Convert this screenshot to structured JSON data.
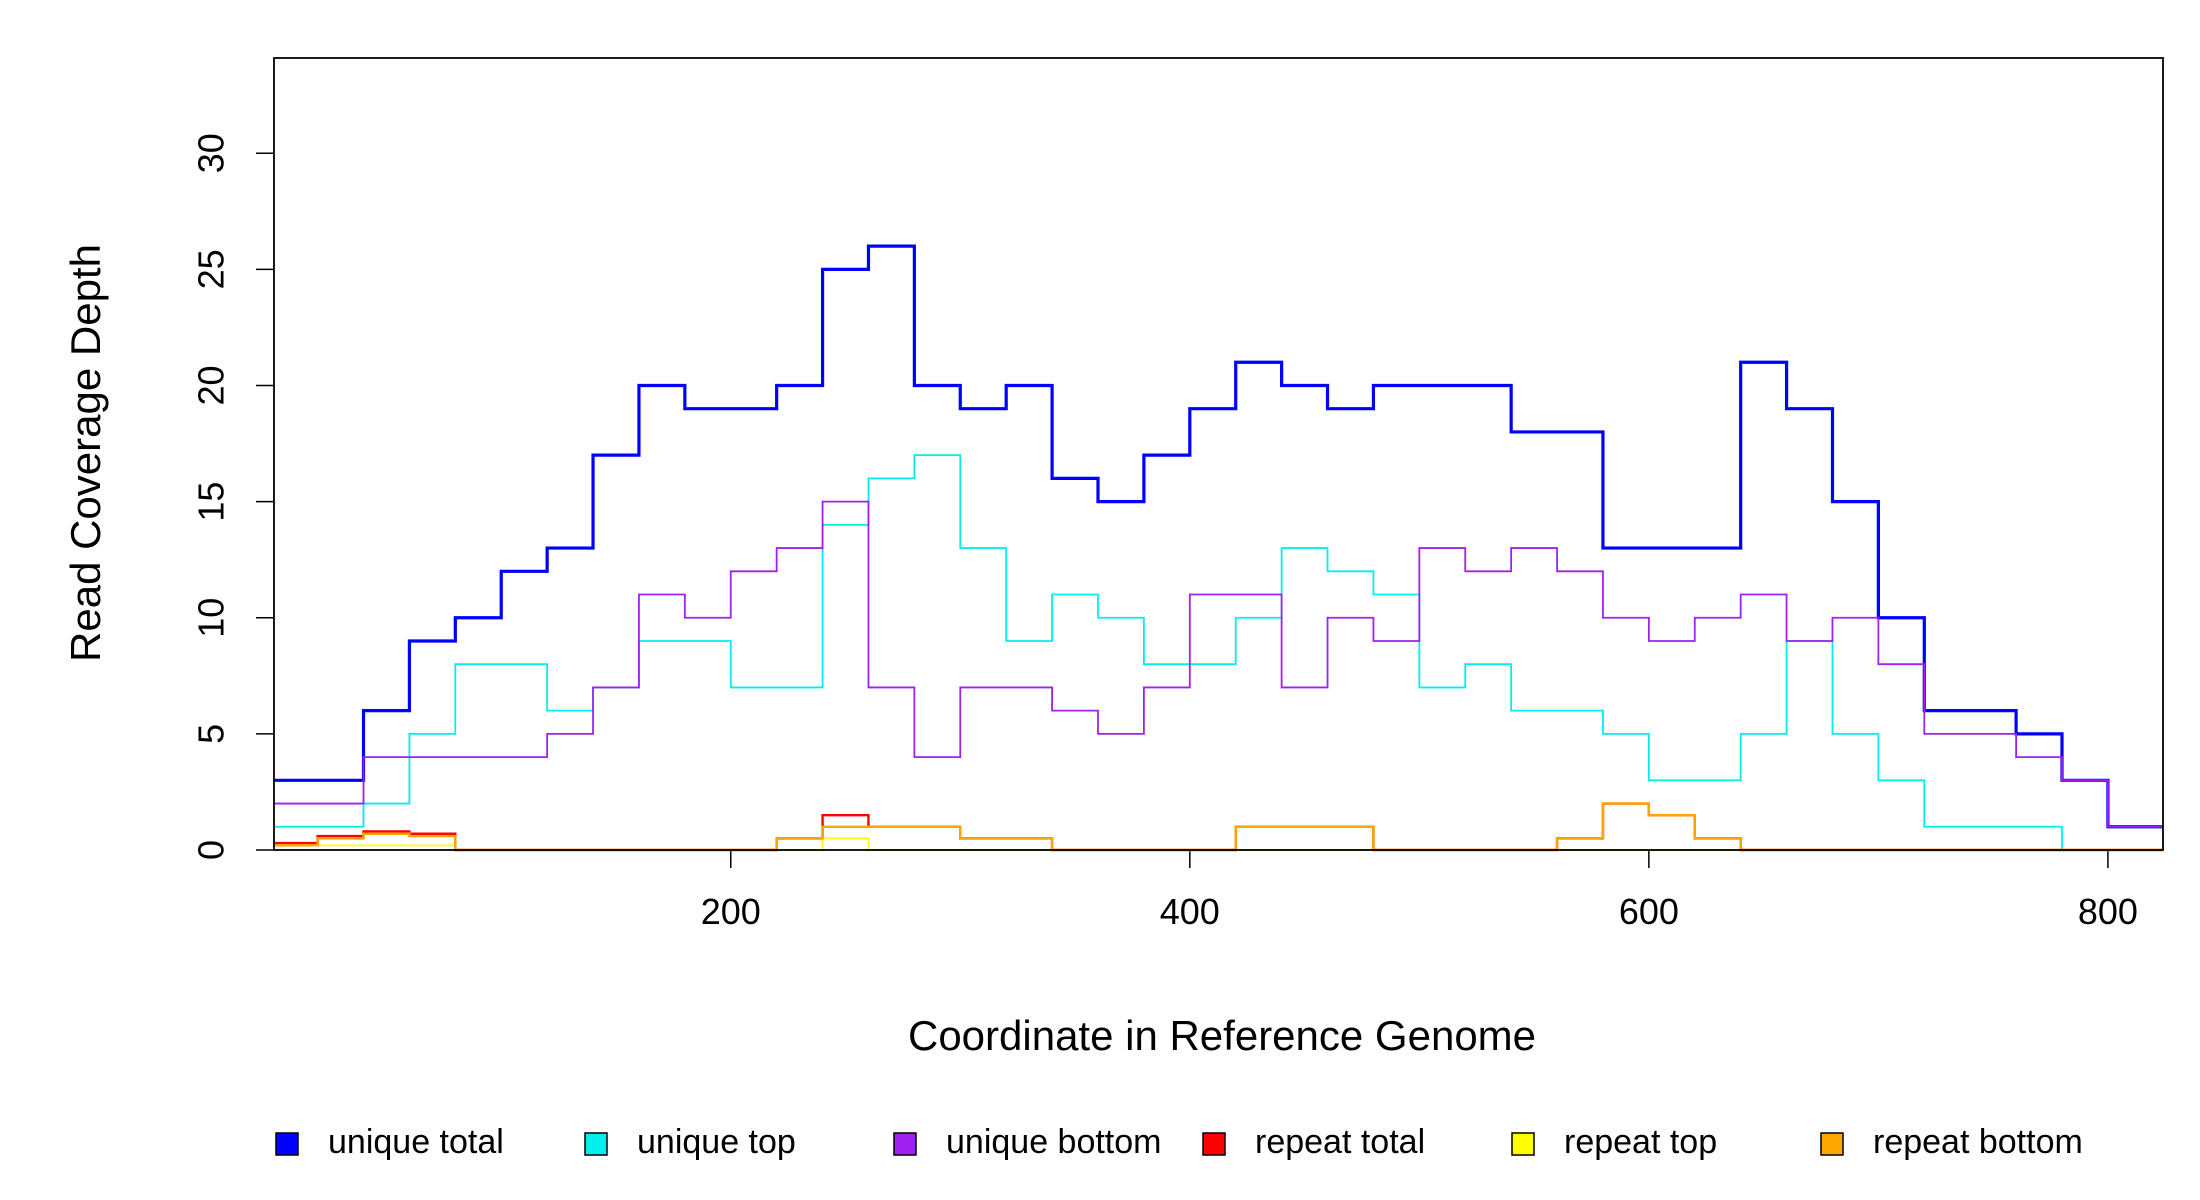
{
  "chart_data": {
    "type": "step",
    "x_label": "Coordinate in Reference Genome",
    "y_label": "Read Coverage Depth",
    "x": [
      1,
      20,
      40,
      60,
      80,
      100,
      120,
      140,
      160,
      180,
      200,
      220,
      240,
      260,
      280,
      300,
      320,
      340,
      360,
      380,
      400,
      420,
      440,
      460,
      480,
      500,
      520,
      540,
      560,
      580,
      600,
      620,
      640,
      660,
      680,
      700,
      720,
      740,
      760,
      780,
      800,
      820
    ],
    "series": [
      {
        "name": "unique total",
        "color": "#0000ff",
        "width": 3.2,
        "values": [
          3,
          3,
          6,
          9,
          10,
          12,
          13,
          17,
          20,
          19,
          19,
          20,
          25,
          26,
          20,
          19,
          20,
          16,
          15,
          17,
          19,
          21,
          20,
          19,
          20,
          20,
          20,
          18,
          18,
          13,
          13,
          13,
          21,
          19,
          15,
          10,
          6,
          6,
          5,
          3,
          1,
          1
        ]
      },
      {
        "name": "unique top",
        "color": "#00eeee",
        "width": 1.8,
        "values": [
          1,
          1,
          2,
          5,
          8,
          8,
          6,
          7,
          9,
          9,
          7,
          7,
          14,
          16,
          17,
          13,
          9,
          11,
          10,
          8,
          8,
          10,
          13,
          12,
          11,
          7,
          8,
          6,
          6,
          5,
          3,
          3,
          5,
          9,
          5,
          3,
          1,
          1,
          1,
          0,
          0,
          0
        ]
      },
      {
        "name": "unique bottom",
        "color": "#a020f0",
        "width": 1.8,
        "values": [
          2,
          2,
          4,
          4,
          4,
          4,
          5,
          7,
          11,
          10,
          12,
          13,
          15,
          7,
          4,
          7,
          7,
          6,
          5,
          7,
          11,
          11,
          7,
          10,
          9,
          13,
          12,
          13,
          12,
          10,
          9,
          10,
          11,
          9,
          10,
          8,
          5,
          5,
          4,
          3,
          1,
          1
        ]
      },
      {
        "name": "repeat total",
        "color": "#ff0000",
        "width": 2.4,
        "values": [
          0.3,
          0.6,
          0.8,
          0.7,
          0,
          0,
          0,
          0,
          0,
          0,
          0,
          0.5,
          1.5,
          1,
          1,
          0.5,
          0.5,
          0,
          0,
          0,
          0,
          1,
          1,
          1,
          0,
          0,
          0,
          0,
          0.5,
          2,
          1.5,
          0.5,
          0,
          0,
          0,
          0,
          0,
          0,
          0,
          0,
          0,
          0
        ]
      },
      {
        "name": "repeat top",
        "color": "#ffff00",
        "width": 1.8,
        "values": [
          0.2,
          0.2,
          0.2,
          0.2,
          0,
          0,
          0,
          0,
          0,
          0,
          0,
          0,
          0.5,
          0,
          0,
          0,
          0,
          0,
          0,
          0,
          0,
          0,
          0,
          0,
          0,
          0,
          0,
          0,
          0,
          0,
          0,
          0,
          0,
          0,
          0,
          0,
          0,
          0,
          0,
          0,
          0,
          0
        ]
      },
      {
        "name": "repeat bottom",
        "color": "#ffa500",
        "width": 2.4,
        "values": [
          0.2,
          0.5,
          0.7,
          0.6,
          0,
          0,
          0,
          0,
          0,
          0,
          0,
          0.5,
          1,
          1,
          1,
          0.5,
          0.5,
          0,
          0,
          0,
          0,
          1,
          1,
          1,
          0,
          0,
          0,
          0,
          0.5,
          2,
          1.5,
          0.5,
          0,
          0,
          0,
          0,
          0,
          0,
          0,
          0,
          0,
          0
        ]
      }
    ],
    "xlim": [
      1,
      824
    ],
    "ylim": [
      0,
      34.1
    ],
    "xticks": [
      200,
      400,
      600,
      800
    ],
    "yticks": [
      0,
      5,
      10,
      15,
      20,
      25,
      30
    ],
    "legend_position": "bottom"
  }
}
